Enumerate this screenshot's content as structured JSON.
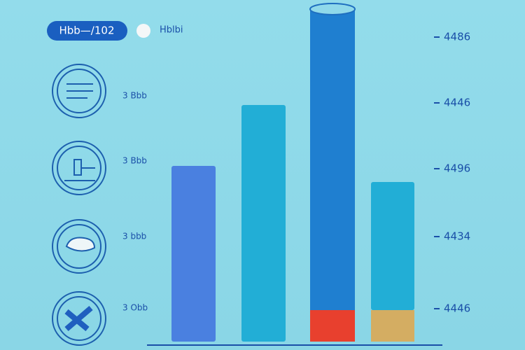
{
  "header": {
    "pill": "Hbb—/102",
    "legend": "Hblbi"
  },
  "icons": [
    {
      "label": "3 Bbb"
    },
    {
      "label": "3 Bbb"
    },
    {
      "label": "3 bbb"
    },
    {
      "label": "3 Obb"
    }
  ],
  "right_labels": [
    "4486",
    "4446",
    "4496",
    "4434",
    "4446"
  ]
}
